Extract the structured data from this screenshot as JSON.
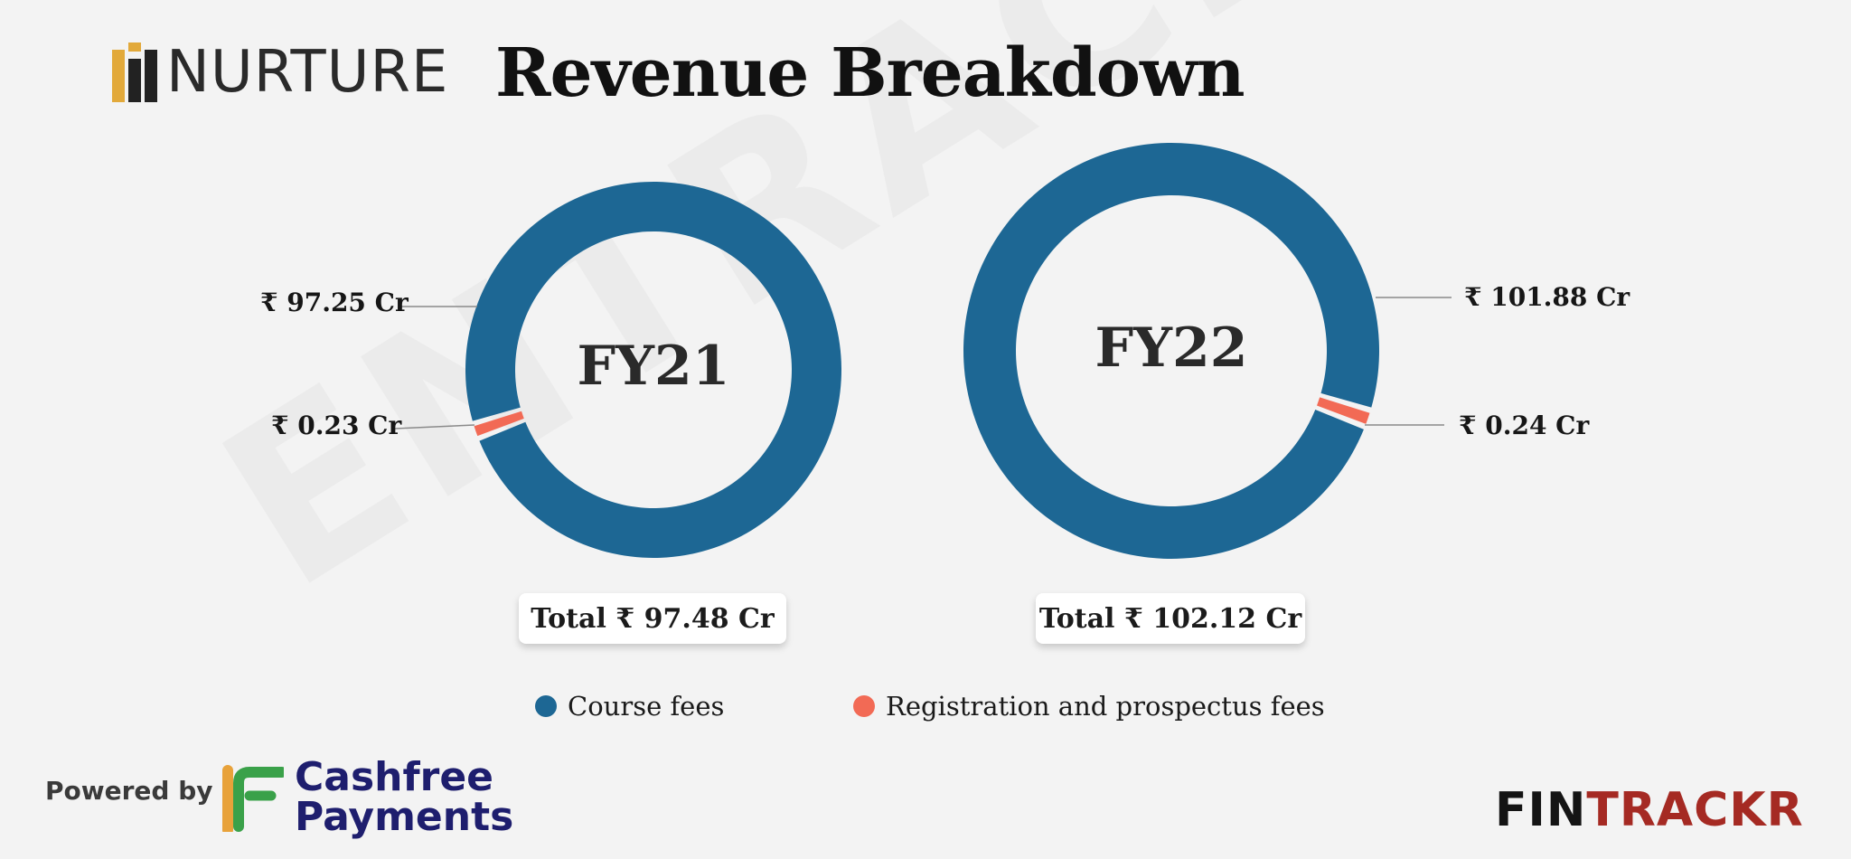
{
  "header": {
    "brand_name": "NURTURE",
    "title": "Revenue Breakdown"
  },
  "watermark": "ENTRACKR",
  "colors": {
    "course_fees": "#1d6794",
    "registration_fees": "#f26a55",
    "brand_gold": "#e2a93a",
    "brand_dark": "#222222",
    "fintrackr_dark": "#141414",
    "fintrackr_red": "#a52a23",
    "cashfree_navy": "#1e1e6e",
    "cashfree_green": "#3aa149",
    "cashfree_orange": "#e8a23a"
  },
  "chart_data": {
    "type": "pie",
    "style": "donut",
    "series_names": [
      "Course fees",
      "Registration and prospectus fees"
    ],
    "charts": [
      {
        "center_label": "FY21",
        "values": [
          97.25,
          0.23
        ],
        "value_labels": [
          "₹ 97.25 Cr",
          "₹ 0.23 Cr"
        ],
        "total_label": "Total ₹ 97.48 Cr"
      },
      {
        "center_label": "FY22",
        "values": [
          101.88,
          0.24
        ],
        "value_labels": [
          "₹ 101.88 Cr",
          "₹ 0.24 Cr"
        ],
        "total_label": "Total ₹ 102.12 Cr"
      }
    ]
  },
  "footer": {
    "powered_by": "Powered by",
    "cashfree_line1": "Cashfree",
    "cashfree_line2": "Payments",
    "fintrackr_part1": "FIN",
    "fintrackr_part2": "TRACKR"
  }
}
